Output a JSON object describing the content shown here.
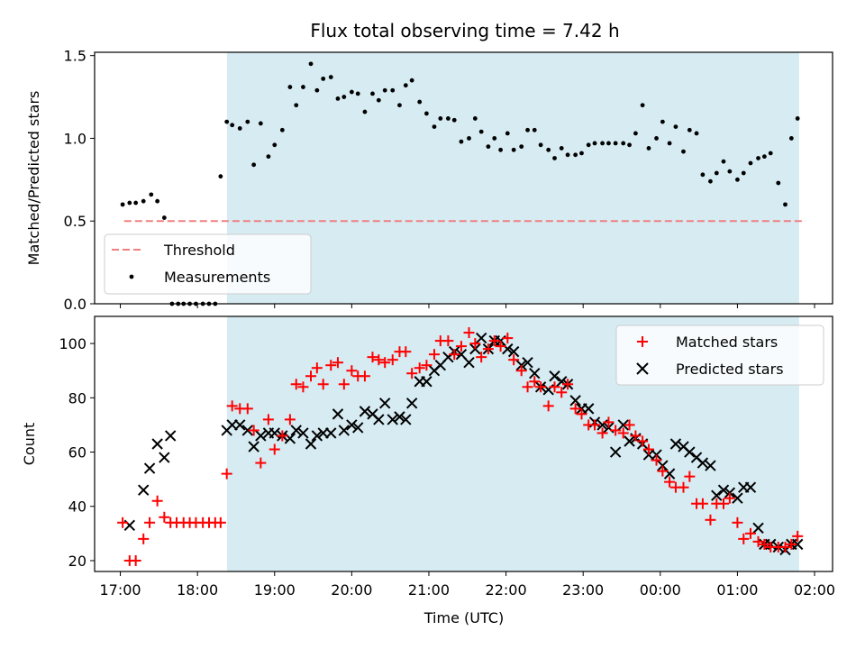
{
  "title": "Flux total observing time = 7.42 h",
  "colors": {
    "matched": "#ff0000",
    "predicted": "#000000",
    "measurement": "#000000",
    "threshold": "#f08080",
    "span": "#add8e6"
  },
  "chart_data": [
    {
      "type": "scatter",
      "panel": "top",
      "ylabel": "Matched/Predicted stars",
      "ylim": [
        0,
        1.52
      ],
      "xlim": [
        "16:40",
        "02:14"
      ],
      "yticks": [
        "0.0",
        "0.5",
        "1.0",
        "1.5"
      ],
      "ytick_values": [
        0,
        0.5,
        1.0,
        1.5
      ],
      "x_unit": "hours since 00:00 UTC of first day",
      "observing_window": {
        "start": "18:23",
        "end": "01:48"
      },
      "threshold": {
        "label": "Threshold",
        "value": 0.5,
        "x_start": "17:03",
        "x_end": "01:53"
      },
      "legend": {
        "position": "lower-left",
        "entries": [
          "Threshold",
          "Measurements"
        ]
      },
      "series": [
        {
          "name": "Measurements",
          "marker": "dot",
          "x": [
            17.03,
            17.12,
            17.2,
            17.3,
            17.4,
            17.48,
            17.57,
            17.67,
            17.75,
            17.82,
            17.9,
            17.98,
            18.07,
            18.15,
            18.23,
            18.3,
            18.38,
            18.45,
            18.55,
            18.65,
            18.73,
            18.82,
            18.92,
            19.0,
            19.1,
            19.2,
            19.28,
            19.37,
            19.47,
            19.55,
            19.63,
            19.73,
            19.82,
            19.9,
            20.0,
            20.08,
            20.17,
            20.27,
            20.35,
            20.43,
            20.53,
            20.62,
            20.7,
            20.78,
            20.88,
            20.97,
            21.07,
            21.15,
            21.25,
            21.33,
            21.42,
            21.52,
            21.6,
            21.68,
            21.77,
            21.85,
            21.93,
            22.02,
            22.1,
            22.2,
            22.28,
            22.37,
            22.45,
            22.55,
            22.63,
            22.72,
            22.8,
            22.9,
            22.98,
            23.07,
            23.15,
            23.25,
            23.33,
            23.42,
            23.52,
            23.6,
            23.68,
            23.77,
            23.85,
            23.95,
            24.03,
            24.12,
            24.2,
            24.3,
            24.38,
            24.47,
            24.55,
            24.65,
            24.73,
            24.82,
            24.9,
            25.0,
            25.08,
            25.17,
            25.27,
            25.35,
            25.43,
            25.53,
            25.62,
            25.7,
            25.78
          ],
          "y": [
            0.6,
            0.61,
            0.61,
            0.62,
            0.66,
            0.62,
            0.52,
            0.0,
            0.0,
            0.0,
            0.0,
            0.0,
            0.0,
            0.0,
            0.0,
            0.77,
            1.1,
            1.08,
            1.06,
            1.1,
            0.84,
            1.09,
            0.89,
            0.96,
            1.05,
            1.31,
            1.2,
            1.31,
            1.45,
            1.29,
            1.36,
            1.37,
            1.24,
            1.25,
            1.28,
            1.27,
            1.16,
            1.27,
            1.23,
            1.29,
            1.29,
            1.2,
            1.32,
            1.35,
            1.22,
            1.15,
            1.07,
            1.12,
            1.12,
            1.11,
            0.98,
            1.0,
            1.12,
            1.04,
            0.95,
            1.0,
            0.93,
            1.03,
            0.93,
            0.95,
            1.05,
            1.05,
            0.96,
            0.93,
            0.88,
            0.94,
            0.9,
            0.9,
            0.91,
            0.96,
            0.97,
            0.97,
            0.97,
            0.97,
            0.97,
            0.96,
            1.03,
            1.2,
            0.94,
            1.0,
            1.1,
            0.97,
            1.07,
            0.92,
            1.05,
            1.03,
            0.78,
            0.74,
            0.79,
            0.86,
            0.8,
            0.75,
            0.79,
            0.85,
            0.88,
            0.89,
            0.91,
            0.73,
            0.6,
            1.0,
            1.12
          ]
        }
      ]
    },
    {
      "type": "scatter",
      "panel": "bottom",
      "xlabel": "Time (UTC)",
      "ylabel": "Count",
      "ylim": [
        16,
        110
      ],
      "xlim": [
        "16:40",
        "02:14"
      ],
      "xticks": [
        "17:00",
        "18:00",
        "19:00",
        "20:00",
        "21:00",
        "22:00",
        "23:00",
        "00:00",
        "01:00",
        "02:00"
      ],
      "xtick_values": [
        17,
        18,
        19,
        20,
        21,
        22,
        23,
        24,
        25,
        26
      ],
      "yticks": [
        "20",
        "40",
        "60",
        "80",
        "100"
      ],
      "ytick_values": [
        20,
        40,
        60,
        80,
        100
      ],
      "observing_window": {
        "start": "18:23",
        "end": "01:48"
      },
      "legend": {
        "position": "top-right",
        "entries": [
          "Matched stars",
          "Predicted stars"
        ]
      },
      "series": [
        {
          "name": "Matched stars",
          "marker": "plus",
          "x": [
            17.03,
            17.12,
            17.2,
            17.3,
            17.38,
            17.48,
            17.57,
            17.65,
            17.73,
            17.82,
            17.9,
            17.98,
            18.07,
            18.15,
            18.23,
            18.3,
            18.38,
            18.45,
            18.55,
            18.65,
            18.73,
            18.82,
            18.92,
            19.0,
            19.1,
            19.2,
            19.28,
            19.37,
            19.47,
            19.55,
            19.63,
            19.73,
            19.82,
            19.9,
            20.0,
            20.08,
            20.17,
            20.27,
            20.35,
            20.43,
            20.53,
            20.62,
            20.7,
            20.78,
            20.88,
            20.97,
            21.07,
            21.15,
            21.25,
            21.33,
            21.42,
            21.52,
            21.6,
            21.68,
            21.77,
            21.85,
            21.93,
            22.02,
            22.1,
            22.2,
            22.28,
            22.37,
            22.45,
            22.55,
            22.63,
            22.72,
            22.8,
            22.9,
            22.98,
            23.07,
            23.15,
            23.25,
            23.33,
            23.42,
            23.52,
            23.6,
            23.68,
            23.77,
            23.85,
            23.95,
            24.03,
            24.12,
            24.2,
            24.3,
            24.38,
            24.47,
            24.55,
            24.65,
            24.73,
            24.82,
            24.9,
            25.0,
            25.08,
            25.17,
            25.27,
            25.35,
            25.43,
            25.53,
            25.62,
            25.7,
            25.78
          ],
          "y": [
            34,
            20,
            20,
            28,
            34,
            42,
            36,
            34,
            34,
            34,
            34,
            34,
            34,
            34,
            34,
            34,
            52,
            77,
            76,
            76,
            68,
            56,
            72,
            61,
            66,
            72,
            85,
            84,
            88,
            91,
            85,
            92,
            93,
            85,
            90,
            88,
            88,
            95,
            94,
            93,
            94,
            97,
            97,
            89,
            91,
            92,
            96,
            101,
            101,
            96,
            99,
            104,
            100,
            95,
            98,
            101,
            99,
            102,
            94,
            90,
            84,
            86,
            84,
            77,
            84,
            82,
            85,
            76,
            74,
            70,
            70,
            67,
            71,
            68,
            67,
            70,
            66,
            64,
            61,
            57,
            53,
            49,
            47,
            47,
            51,
            41,
            41,
            35,
            41,
            41,
            43,
            34,
            28,
            30,
            27,
            26,
            25,
            25,
            25,
            26,
            29
          ]
        },
        {
          "name": "Predicted stars",
          "marker": "x",
          "x": [
            17.12,
            17.3,
            17.38,
            17.48,
            17.57,
            17.65,
            18.38,
            18.45,
            18.55,
            18.65,
            18.73,
            18.82,
            18.92,
            19.0,
            19.1,
            19.2,
            19.28,
            19.37,
            19.47,
            19.55,
            19.63,
            19.73,
            19.82,
            19.9,
            20.0,
            20.08,
            20.17,
            20.27,
            20.35,
            20.43,
            20.53,
            20.62,
            20.7,
            20.78,
            20.88,
            20.97,
            21.07,
            21.15,
            21.25,
            21.33,
            21.42,
            21.52,
            21.6,
            21.68,
            21.77,
            21.85,
            21.93,
            22.02,
            22.1,
            22.2,
            22.28,
            22.37,
            22.45,
            22.55,
            22.63,
            22.72,
            22.8,
            22.9,
            22.98,
            23.07,
            23.15,
            23.25,
            23.33,
            23.42,
            23.52,
            23.6,
            23.68,
            23.77,
            23.85,
            23.95,
            24.03,
            24.12,
            24.2,
            24.3,
            24.38,
            24.47,
            24.55,
            24.65,
            24.73,
            24.82,
            24.9,
            25.0,
            25.08,
            25.17,
            25.27,
            25.35,
            25.43,
            25.53,
            25.62,
            25.7,
            25.78
          ],
          "y": [
            33,
            46,
            54,
            63,
            58,
            66,
            68,
            70,
            70,
            68,
            62,
            66,
            67,
            67,
            66,
            65,
            68,
            67,
            63,
            66,
            67,
            67,
            74,
            68,
            70,
            69,
            75,
            74,
            72,
            78,
            72,
            73,
            72,
            78,
            86,
            86,
            90,
            92,
            95,
            97,
            96,
            93,
            98,
            102,
            98,
            101,
            101,
            98,
            97,
            92,
            93,
            89,
            84,
            83,
            88,
            86,
            85,
            79,
            76,
            76,
            71,
            70,
            69,
            60,
            70,
            64,
            65,
            63,
            59,
            59,
            55,
            52,
            63,
            62,
            60,
            58,
            56,
            55,
            44,
            46,
            45,
            43,
            47,
            47,
            32,
            26,
            26,
            25,
            24,
            26,
            26
          ]
        }
      ]
    }
  ]
}
